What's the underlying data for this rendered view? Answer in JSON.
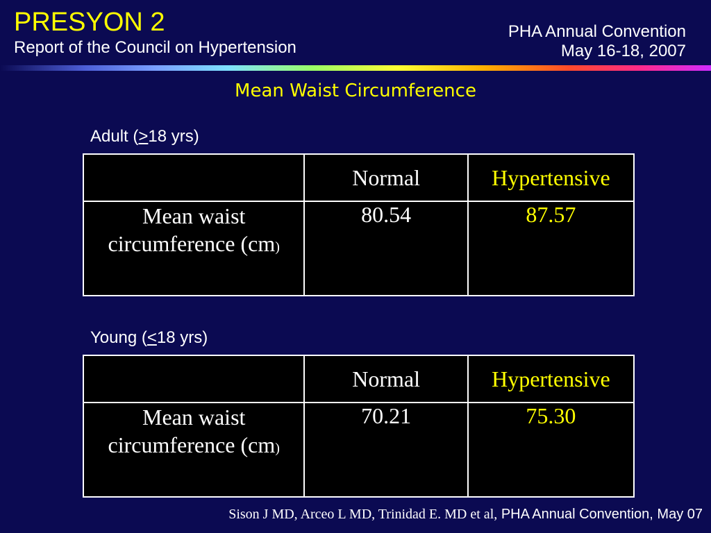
{
  "header": {
    "title": "PRESYON 2",
    "subtitle": "Report of the Council on Hypertension",
    "convention_line1": "PHA Annual Convention",
    "convention_line2": "May 16-18, 2007"
  },
  "slide": {
    "heading": "Mean Waist Circumference"
  },
  "adult": {
    "label_prefix": "Adult (",
    "label_symbol": ">",
    "label_suffix": "18 yrs)",
    "col_normal": "Normal",
    "col_hypertensive": "Hypertensive",
    "row_label_line1": "Mean waist",
    "row_label_line2": "circumference (cm",
    "row_label_close": ")",
    "normal_value": "80.54",
    "hypertensive_value": "87.57"
  },
  "young": {
    "label_prefix": "Young (",
    "label_symbol": "<",
    "label_suffix": "18 yrs)",
    "col_normal": "Normal",
    "col_hypertensive": "Hypertensive",
    "row_label_line1": "Mean waist",
    "row_label_line2": "circumference (cm",
    "row_label_close": ")",
    "normal_value": "70.21",
    "hypertensive_value": "75.30"
  },
  "footer": {
    "authors": "Sison J MD, Arceo L MD, Trinidad E. MD et al,",
    "event": "PHA Annual Convention, May 07"
  },
  "colors": {
    "background": "#0b0a52",
    "accent": "#ffff00",
    "table_bg": "#000000",
    "text": "#ffffff"
  }
}
